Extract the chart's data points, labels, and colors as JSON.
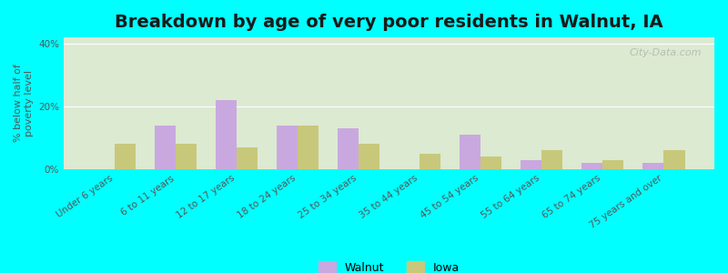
{
  "title": "Breakdown by age of very poor residents in Walnut, IA",
  "ylabel": "% below half of\npoverty level",
  "categories": [
    "Under 6 years",
    "6 to 11 years",
    "12 to 17 years",
    "18 to 24 years",
    "25 to 34 years",
    "35 to 44 years",
    "45 to 54 years",
    "55 to 64 years",
    "65 to 74 years",
    "75 years and over"
  ],
  "walnut_values": [
    0,
    14,
    22,
    14,
    13,
    0,
    11,
    3,
    2,
    2
  ],
  "iowa_values": [
    8,
    8,
    7,
    14,
    8,
    5,
    4,
    6,
    3,
    6
  ],
  "walnut_color": "#c9a8e0",
  "iowa_color": "#c8c87a",
  "ylim": [
    0,
    42
  ],
  "yticks": [
    0,
    20,
    40
  ],
  "ytick_labels": [
    "0%",
    "20%",
    "40%"
  ],
  "background_color": "#00ffff",
  "plot_bg_top": "#f0f5e8",
  "plot_bg_bottom": "#e8f0e0",
  "bar_width": 0.35,
  "title_fontsize": 14,
  "axis_label_fontsize": 8,
  "tick_fontsize": 7.5,
  "legend_labels": [
    "Walnut",
    "Iowa"
  ],
  "watermark": "City-Data.com"
}
